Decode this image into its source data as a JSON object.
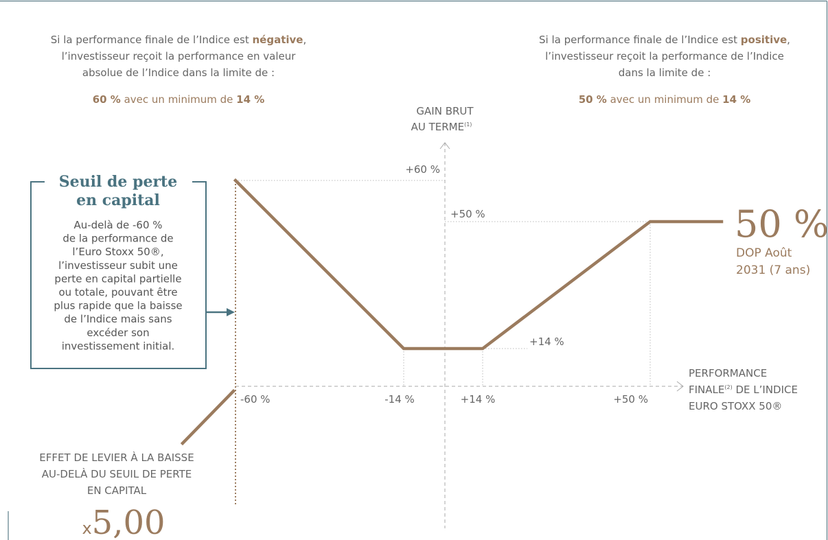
{
  "left_note": {
    "line1_prefix": "Si la performance finale de l’Indice est ",
    "line1_bold": "négative",
    "line1_suffix": ",",
    "line2": "l’investisseur reçoit la performance en valeur",
    "line3": "absolue de l’Indice dans la limite de :",
    "cap": "60 %",
    "middle": " avec un minimum de ",
    "floor": "14 %"
  },
  "right_note": {
    "line1_prefix": "Si la performance finale de l’Indice est ",
    "line1_bold": "positive",
    "line1_suffix": ",",
    "line2": "l’investisseur reçoit la performance de l’Indice",
    "line3": "dans la limite de :",
    "cap": "50 %",
    "middle": " avec un minimum de ",
    "floor": "14 %"
  },
  "y_axis_label": {
    "line1": "GAIN BRUT",
    "line2": "AU TERME",
    "note": "(1)"
  },
  "x_axis_label": {
    "line1": "PERFORMANCE",
    "line2_a": "FINALE",
    "note": "(2)",
    "line2_b": " DE L’INDICE",
    "line3": "EURO STOXX 50®"
  },
  "y_labels": [
    "+60 %",
    "+50 %",
    "+14 %"
  ],
  "x_labels": [
    "-60 %",
    "-14 %",
    "+14 %",
    "+50 %"
  ],
  "box": {
    "title": [
      "Seuil de perte",
      "en capital"
    ],
    "body": [
      "Au-delà de -60 %",
      "de la performance de",
      "l’Euro Stoxx 50®,",
      "l’investisseur subit une",
      "perte en capital partielle",
      "ou totale, pouvant être",
      "plus rapide que la baisse",
      "de l’Indice mais sans",
      "excéder son",
      "investissement initial."
    ]
  },
  "leverage": {
    "lines": [
      "EFFET DE LEVIER À LA BAISSE",
      "AU-DELÀ DU SEUIL DE PERTE",
      "EN CAPITAL"
    ],
    "prefix": "x",
    "value": "5,00"
  },
  "result": {
    "value": "50 %",
    "line1": "DOP Août",
    "line2": "2031 (7 ans)"
  }
}
